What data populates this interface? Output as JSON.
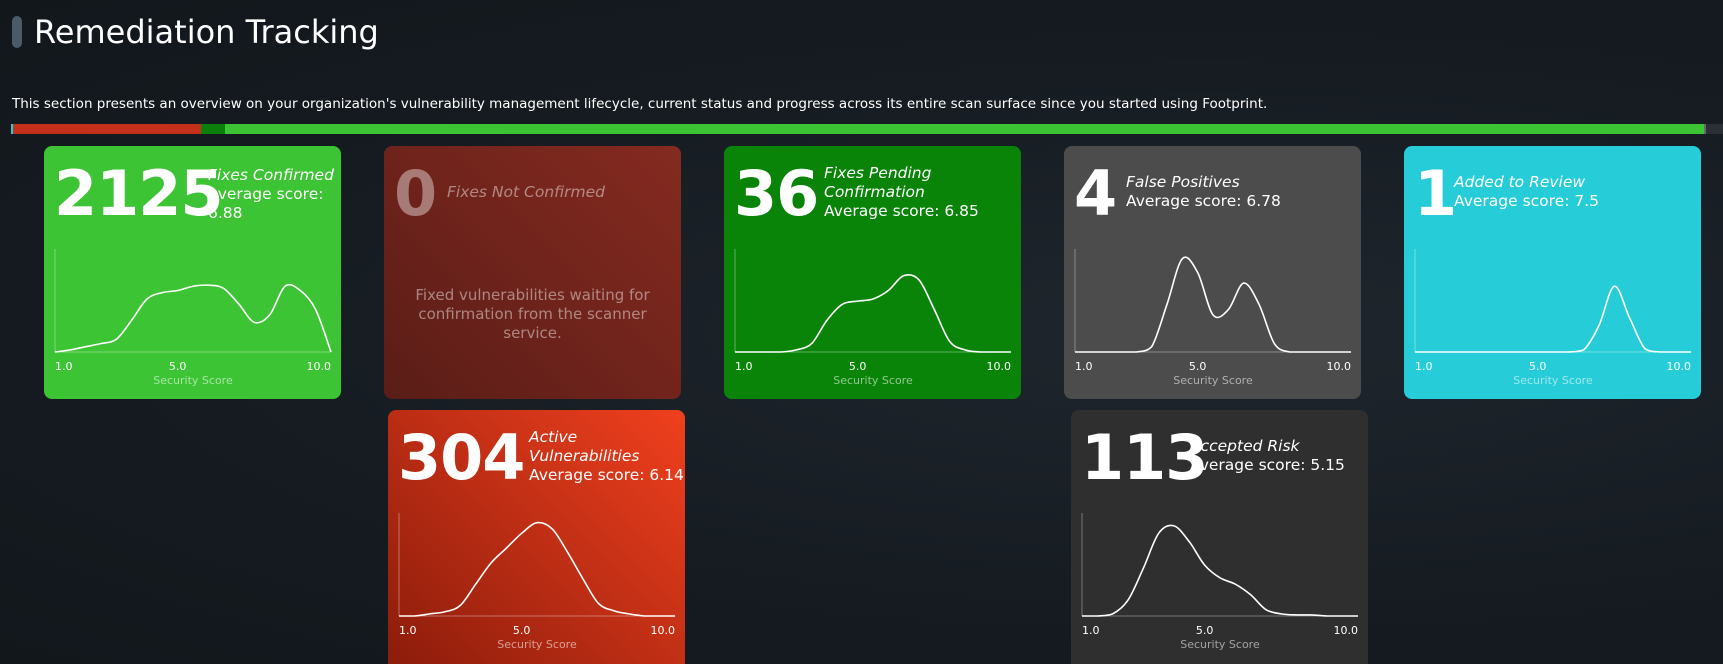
{
  "header": {
    "title": "Remediation Tracking",
    "description": "This section presents an overview on your organization's vulnerability management lifecycle, current status and progress across its entire scan surface since you started using Footprint."
  },
  "progress_bar": {
    "segments": [
      {
        "name": "review",
        "fraction": 0.001,
        "color": "#26cdd8"
      },
      {
        "name": "active",
        "fraction": 0.11,
        "color": "#c5301b"
      },
      {
        "name": "pending",
        "fraction": 0.014,
        "color": "#0b7e0b"
      },
      {
        "name": "confirmed",
        "fraction": 0.864,
        "color": "#3dc435"
      },
      {
        "name": "false-positive",
        "fraction": 0.001,
        "color": "#6a6a6a"
      }
    ],
    "track_color": "#2b3036"
  },
  "axis": {
    "min_label": "1.0",
    "mid_label": "5.0",
    "max_label": "10.0",
    "title": "Security Score"
  },
  "cards": [
    {
      "id": "fixes-confirmed",
      "count": "2125",
      "label": "Fixes Confirmed",
      "avg": "Average score: 6.88",
      "bg": "#3dc435",
      "chart_data": {
        "type": "area",
        "x": [
          1.0,
          1.5,
          2.0,
          2.5,
          3.0,
          3.5,
          4.0,
          4.5,
          5.0,
          5.5,
          6.0,
          6.5,
          7.0,
          7.5,
          8.0,
          8.5,
          9.0,
          9.5,
          10.0
        ],
        "values": [
          0.0,
          0.02,
          0.05,
          0.08,
          0.12,
          0.3,
          0.5,
          0.56,
          0.58,
          0.62,
          0.63,
          0.6,
          0.45,
          0.28,
          0.35,
          0.62,
          0.58,
          0.4,
          0.0
        ]
      }
    },
    {
      "id": "fixes-not-confirmed",
      "count": "0",
      "label": "Fixes Not Confirmed",
      "avg": "",
      "bg_from": "#852a20",
      "bg_to": "#5a1d17",
      "message": "Fixed vulnerabilities waiting for confirmation from the scanner service."
    },
    {
      "id": "fixes-pending",
      "count": "36",
      "label": "Fixes Pending Confirmation",
      "avg": "Average score: 6.85",
      "bg": "#098409",
      "chart_data": {
        "type": "area",
        "x": [
          1.0,
          1.5,
          2.0,
          2.5,
          3.0,
          3.5,
          4.0,
          4.5,
          5.0,
          5.5,
          6.0,
          6.5,
          7.0,
          7.5,
          8.0,
          8.5,
          9.0,
          9.5,
          10.0
        ],
        "values": [
          0.0,
          0.0,
          0.0,
          0.0,
          0.02,
          0.08,
          0.3,
          0.45,
          0.48,
          0.5,
          0.58,
          0.72,
          0.68,
          0.4,
          0.1,
          0.02,
          0.0,
          0.0,
          0.0
        ]
      }
    },
    {
      "id": "false-positives",
      "count": "4",
      "label": "False Positives",
      "avg": "Average score: 6.78",
      "bg": "#4c4c4c",
      "chart_data": {
        "type": "area",
        "x": [
          1.0,
          1.5,
          2.0,
          2.5,
          3.0,
          3.5,
          4.0,
          4.5,
          5.0,
          5.5,
          6.0,
          6.5,
          7.0,
          7.5,
          8.0,
          8.5,
          9.0,
          9.5,
          10.0
        ],
        "values": [
          0.0,
          0.0,
          0.0,
          0.0,
          0.0,
          0.05,
          0.45,
          0.88,
          0.75,
          0.35,
          0.4,
          0.65,
          0.45,
          0.08,
          0.0,
          0.0,
          0.0,
          0.0,
          0.0
        ]
      }
    },
    {
      "id": "added-to-review",
      "count": "1",
      "label": "Added to Review",
      "avg": "Average score: 7.5",
      "bg": "#26cdd8",
      "chart_data": {
        "type": "area",
        "x": [
          1.0,
          1.5,
          2.0,
          2.5,
          3.0,
          3.5,
          4.0,
          4.5,
          5.0,
          5.5,
          6.0,
          6.5,
          7.0,
          7.5,
          8.0,
          8.5,
          9.0,
          9.5,
          10.0
        ],
        "values": [
          0.0,
          0.0,
          0.0,
          0.0,
          0.0,
          0.0,
          0.0,
          0.0,
          0.0,
          0.0,
          0.0,
          0.02,
          0.25,
          0.62,
          0.32,
          0.03,
          0.0,
          0.0,
          0.0
        ]
      }
    },
    {
      "id": "active-vulnerabilities",
      "count": "304",
      "label": "Active Vulnerabilities",
      "avg": "Average score: 6.14",
      "bg_from": "#f0401e",
      "bg_to": "#8c1c0b",
      "chart_data": {
        "type": "area",
        "x": [
          1.0,
          1.5,
          2.0,
          2.5,
          3.0,
          3.5,
          4.0,
          4.5,
          5.0,
          5.5,
          6.0,
          6.5,
          7.0,
          7.5,
          8.0,
          8.5,
          9.0,
          9.5,
          10.0
        ],
        "values": [
          0.0,
          0.0,
          0.02,
          0.04,
          0.1,
          0.3,
          0.5,
          0.64,
          0.78,
          0.88,
          0.82,
          0.6,
          0.35,
          0.12,
          0.05,
          0.02,
          0.0,
          0.0,
          0.0
        ]
      }
    },
    {
      "id": "accepted-risk",
      "count": "113",
      "label": "Accepted Risk",
      "avg": "Average score: 5.15",
      "bg": "#2f2f2f",
      "chart_data": {
        "type": "area",
        "x": [
          1.0,
          1.5,
          2.0,
          2.5,
          3.0,
          3.5,
          4.0,
          4.5,
          5.0,
          5.5,
          6.0,
          6.5,
          7.0,
          7.5,
          8.0,
          8.5,
          9.0,
          9.5,
          10.0
        ],
        "values": [
          0.0,
          0.0,
          0.02,
          0.15,
          0.45,
          0.78,
          0.85,
          0.7,
          0.48,
          0.36,
          0.3,
          0.2,
          0.06,
          0.02,
          0.01,
          0.01,
          0.0,
          0.0,
          0.0
        ]
      }
    }
  ]
}
